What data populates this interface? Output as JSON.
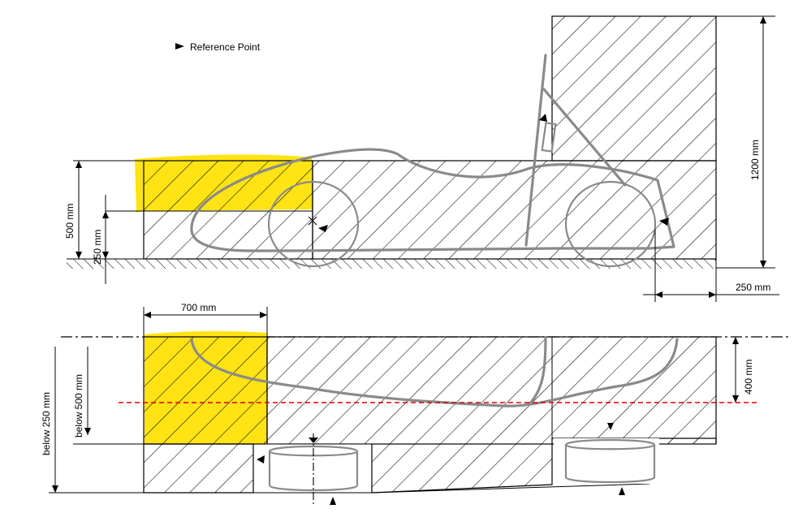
{
  "legend": {
    "reference_point": "Reference Point"
  },
  "dimensions": {
    "height_500": "500 mm",
    "height_250": "250 mm",
    "height_1200": "1200 mm",
    "offset_250": "250 mm",
    "width_700": "700 mm",
    "depth_400": "400 mm",
    "below_500": "below 500 mm",
    "below_250": "below 250 mm"
  },
  "colors": {
    "highlight": "#ffe100",
    "car_outline": "#8a8a8a",
    "ref_line_red": "#e00000"
  }
}
